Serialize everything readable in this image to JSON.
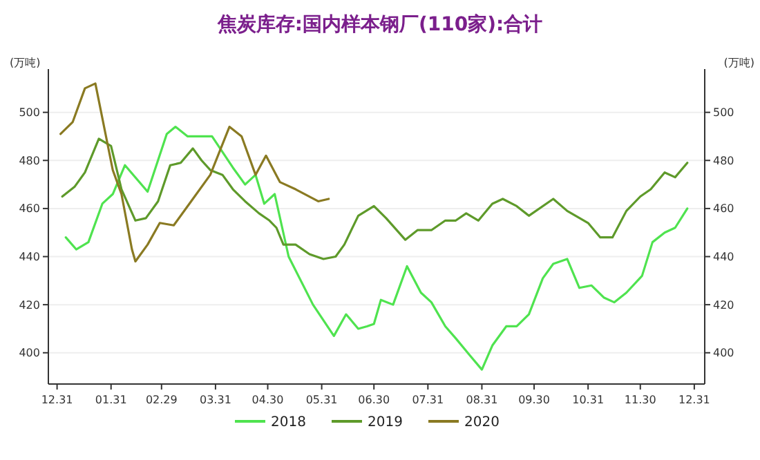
{
  "chart_data": {
    "type": "line",
    "title": "焦炭库存:国内样本钢厂(110家):合计",
    "ylabel": "(万吨)",
    "y2label": "(万吨)",
    "xlim": [
      "2019-12-26",
      "2021-01-06"
    ],
    "xticks": [
      {
        "value": "2019-12-31",
        "label": "12.31"
      },
      {
        "value": "2020-01-31",
        "label": "01.31"
      },
      {
        "value": "2020-02-29",
        "label": "02.29"
      },
      {
        "value": "2020-03-31",
        "label": "03.31"
      },
      {
        "value": "2020-04-30",
        "label": "04.30"
      },
      {
        "value": "2020-05-31",
        "label": "05.31"
      },
      {
        "value": "2020-06-30",
        "label": "06.30"
      },
      {
        "value": "2020-07-31",
        "label": "07.31"
      },
      {
        "value": "2020-08-31",
        "label": "08.31"
      },
      {
        "value": "2020-09-30",
        "label": "09.30"
      },
      {
        "value": "2020-10-31",
        "label": "10.31"
      },
      {
        "value": "2020-11-30",
        "label": "11.30"
      },
      {
        "value": "2020-12-31",
        "label": "12.31"
      }
    ],
    "ylim": [
      387,
      518
    ],
    "yticks": [
      400,
      420,
      440,
      460,
      480,
      500
    ],
    "y2lim": [
      387,
      518
    ],
    "y2ticks": [
      400,
      420,
      440,
      460,
      480,
      500
    ],
    "grid": "y",
    "legend": "bottom",
    "line_style": "solid",
    "marker": "none",
    "series": [
      {
        "name": "2018",
        "color": "#4fe34f",
        "x": [
          "2020-01-05",
          "2020-01-11",
          "2020-01-18",
          "2020-01-26",
          "2020-02-01",
          "2020-02-08",
          "2020-02-21",
          "2020-03-03",
          "2020-03-08",
          "2020-03-15",
          "2020-03-29",
          "2020-04-10",
          "2020-04-17",
          "2020-04-23",
          "2020-04-28",
          "2020-05-04",
          "2020-05-12",
          "2020-05-26",
          "2020-06-07",
          "2020-06-14",
          "2020-06-21",
          "2020-06-26",
          "2020-06-30",
          "2020-07-04",
          "2020-07-11",
          "2020-07-19",
          "2020-07-27",
          "2020-08-02",
          "2020-08-10",
          "2020-08-16",
          "2020-08-24",
          "2020-08-31",
          "2020-09-06",
          "2020-09-14",
          "2020-09-20",
          "2020-09-27",
          "2020-10-05",
          "2020-10-11",
          "2020-10-19",
          "2020-10-26",
          "2020-11-02",
          "2020-11-09",
          "2020-11-15",
          "2020-11-22",
          "2020-12-01",
          "2020-12-07",
          "2020-12-14",
          "2020-12-20",
          "2020-12-27"
        ],
        "values": [
          448,
          443,
          446,
          462,
          466,
          478,
          467,
          491,
          494,
          490,
          490,
          477,
          470,
          474,
          462,
          466,
          440,
          420,
          407,
          416,
          410,
          411,
          412,
          422,
          420,
          436,
          425,
          421,
          411,
          406,
          399,
          393,
          403,
          411,
          411,
          416,
          431,
          437,
          439,
          427,
          428,
          423,
          421,
          425,
          432,
          446,
          450,
          452,
          460
        ]
      },
      {
        "name": "2019",
        "color": "#5e9a2a",
        "x": [
          "2020-01-03",
          "2020-01-10",
          "2020-01-16",
          "2020-01-24",
          "2020-01-31",
          "2020-02-06",
          "2020-02-14",
          "2020-02-20",
          "2020-02-27",
          "2020-03-05",
          "2020-03-11",
          "2020-03-18",
          "2020-03-23",
          "2020-03-28",
          "2020-04-04",
          "2020-04-10",
          "2020-04-17",
          "2020-04-25",
          "2020-05-01",
          "2020-05-05",
          "2020-05-09",
          "2020-05-16",
          "2020-05-24",
          "2020-06-01",
          "2020-06-08",
          "2020-06-13",
          "2020-06-21",
          "2020-06-30",
          "2020-07-07",
          "2020-07-18",
          "2020-07-25",
          "2020-08-02",
          "2020-08-10",
          "2020-08-16",
          "2020-08-22",
          "2020-08-29",
          "2020-09-06",
          "2020-09-12",
          "2020-09-20",
          "2020-09-27",
          "2020-10-11",
          "2020-10-19",
          "2020-10-31",
          "2020-11-07",
          "2020-11-14",
          "2020-11-22",
          "2020-11-30",
          "2020-12-06",
          "2020-12-14",
          "2020-12-20",
          "2020-12-27"
        ],
        "values": [
          465,
          469,
          475,
          489,
          486,
          468,
          455,
          456,
          463,
          478,
          479,
          485,
          480,
          476,
          474,
          468,
          463,
          458,
          455,
          452,
          445,
          445,
          441,
          439,
          440,
          445,
          457,
          461,
          456,
          447,
          451,
          451,
          455,
          455,
          458,
          455,
          462,
          464,
          461,
          457,
          464,
          459,
          454,
          448,
          448,
          459,
          465,
          468,
          475,
          473,
          479
        ]
      },
      {
        "name": "2020",
        "color": "#8a7a22",
        "x": [
          "2020-01-02",
          "2020-01-09",
          "2020-01-16",
          "2020-01-22",
          "2020-02-01",
          "2020-02-06",
          "2020-02-12",
          "2020-02-14",
          "2020-02-21",
          "2020-02-28",
          "2020-03-07",
          "2020-03-17",
          "2020-03-28",
          "2020-04-08",
          "2020-04-15",
          "2020-04-23",
          "2020-04-29",
          "2020-05-07",
          "2020-05-16",
          "2020-05-29",
          "2020-06-04"
        ],
        "values": [
          491,
          496,
          510,
          512,
          476,
          466,
          443,
          438,
          445,
          454,
          453,
          463,
          474,
          494,
          490,
          474,
          482,
          471,
          468,
          463,
          464
        ]
      }
    ]
  }
}
